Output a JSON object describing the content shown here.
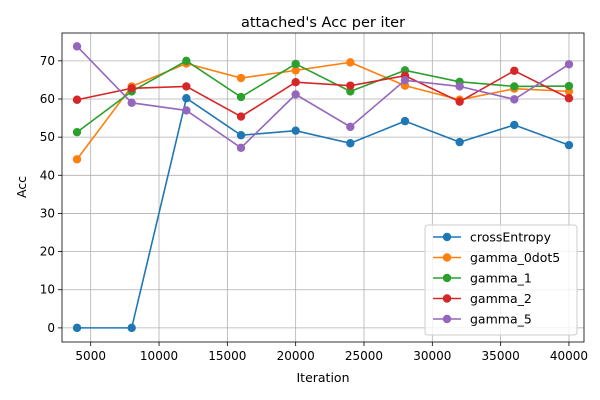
{
  "chart_data": {
    "type": "line",
    "title": "attached's Acc per iter",
    "xlabel": "Iteration",
    "ylabel": "Acc",
    "xlim": [
      2900,
      41100
    ],
    "ylim": [
      -3.7,
      77.3
    ],
    "xticks": [
      5000,
      10000,
      15000,
      20000,
      25000,
      30000,
      35000,
      40000
    ],
    "yticks": [
      0,
      10,
      20,
      30,
      40,
      50,
      60,
      70
    ],
    "grid": true,
    "legend_position": "lower-right",
    "x": [
      4000,
      8000,
      12000,
      16000,
      20000,
      24000,
      28000,
      32000,
      36000,
      40000
    ],
    "series": [
      {
        "name": "crossEntropy",
        "color": "#1f77b4",
        "values": [
          0.0,
          0.0,
          60.2,
          50.5,
          51.7,
          48.4,
          54.2,
          48.7,
          53.2,
          47.9
        ]
      },
      {
        "name": "gamma_0dot5",
        "color": "#ff7f0e",
        "values": [
          44.2,
          63.3,
          69.3,
          65.5,
          67.5,
          69.6,
          63.5,
          59.8,
          62.7,
          62.0
        ]
      },
      {
        "name": "gamma_1",
        "color": "#2ca02c",
        "values": [
          51.3,
          62.0,
          70.0,
          60.5,
          69.2,
          62.0,
          67.5,
          64.5,
          63.3,
          63.4
        ]
      },
      {
        "name": "gamma_2",
        "color": "#d62728",
        "values": [
          59.8,
          62.8,
          63.3,
          55.4,
          64.4,
          63.5,
          66.1,
          59.3,
          67.4,
          60.2
        ]
      },
      {
        "name": "gamma_5",
        "color": "#9467bd",
        "values": [
          73.8,
          59.0,
          57.0,
          47.2,
          61.2,
          52.7,
          64.9,
          63.3,
          59.9,
          69.1
        ]
      }
    ]
  }
}
